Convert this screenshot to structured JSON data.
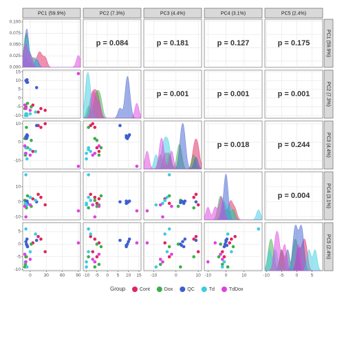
{
  "chart_data": {
    "type": "pairs",
    "variables": [
      "PC1 (59.9%)",
      "PC2 (7.3%)",
      "PC3 (4.4%)",
      "PC4 (3.1%)",
      "PC5 (2.4%)"
    ],
    "lims": [
      [
        -14,
        94
      ],
      [
        -11.5,
        16
      ],
      [
        -14.5,
        11.5
      ],
      [
        -12,
        20
      ],
      [
        -10.5,
        8.5
      ]
    ],
    "ticks": [
      [
        0,
        30,
        60,
        90
      ],
      [
        -10,
        -5,
        0,
        5,
        10,
        15
      ],
      [
        -10,
        0,
        10
      ],
      [
        -10,
        0,
        10
      ],
      [
        -10,
        -5,
        0,
        5
      ]
    ],
    "density_ylim": [
      0,
      0.106
    ],
    "density_yticks": [
      {
        "value": 0,
        "label": "0.000"
      },
      {
        "value": 0.025,
        "label": "0.025"
      },
      {
        "value": 0.05,
        "label": "0.050"
      },
      {
        "value": 0.075,
        "label": "0.075"
      },
      {
        "value": 0.1,
        "label": "0.100"
      }
    ],
    "p_values": [
      [
        0.084,
        0.181,
        0.127,
        0.175
      ],
      [
        0.001,
        0.001,
        0.001
      ],
      [
        0.018,
        0.244
      ],
      [
        0.004
      ]
    ],
    "p_value_labels": [
      [
        "p = 0.084",
        "p = 0.181",
        "p = 0.127",
        "p = 0.175"
      ],
      [
        "p = 0.001",
        "p = 0.001",
        "p = 0.001"
      ],
      [
        "p = 0.018",
        "p = 0.244"
      ],
      [
        "p = 0.004"
      ]
    ],
    "legend_title": "Group",
    "grid": true,
    "groups": [
      {
        "name": "Cont",
        "color": "#e0245e",
        "samples": [
          [
            20,
            -6,
            8,
            3,
            2
          ],
          [
            28,
            -7,
            10,
            -2,
            -3
          ],
          [
            5,
            -4,
            -5,
            2,
            0.5
          ],
          [
            15,
            -8,
            9,
            5,
            3
          ],
          [
            -8,
            -5,
            -3,
            -1,
            -5
          ]
        ]
      },
      {
        "name": "Dox",
        "color": "#3cae49",
        "samples": [
          [
            -9,
            -4,
            -7,
            -2,
            -8
          ],
          [
            -10,
            -6,
            2,
            1,
            -9
          ],
          [
            -7,
            -9,
            8,
            -4,
            -5
          ],
          [
            -5,
            -3,
            -3,
            4,
            -1
          ],
          [
            2,
            -5,
            1,
            -3,
            0
          ]
        ]
      },
      {
        "name": "QC",
        "color": "#3f5fd0",
        "samples": [
          [
            -8,
            10,
            3,
            0,
            1
          ],
          [
            -7,
            9.5,
            2,
            -0.5,
            0
          ],
          [
            -6,
            10.5,
            4,
            0.5,
            2
          ],
          [
            -5,
            9,
            3.5,
            -1,
            -1
          ],
          [
            12,
            6,
            9,
            0,
            1.5
          ],
          [
            -6,
            9,
            2.5,
            0.5,
            -0.5
          ]
        ]
      },
      {
        "name": "Td",
        "color": "#3ccbe0",
        "samples": [
          [
            -6,
            -10,
            -9,
            -2,
            -9
          ],
          [
            0,
            -9,
            -4,
            3,
            -3
          ],
          [
            -8,
            -9,
            -3,
            18,
            6
          ],
          [
            10,
            -8,
            -5,
            1,
            4
          ],
          [
            -9,
            -10,
            -6,
            -1,
            -7
          ]
        ]
      },
      {
        "name": "TdDox",
        "color": "#e040e0",
        "samples": [
          [
            90,
            14,
            -13,
            -6,
            0.5
          ],
          [
            -8,
            -6,
            -6,
            -10,
            -7
          ],
          [
            -10,
            -4,
            -2,
            -3,
            -4
          ],
          [
            0,
            -7,
            -7,
            -2,
            -6
          ]
        ]
      }
    ]
  }
}
